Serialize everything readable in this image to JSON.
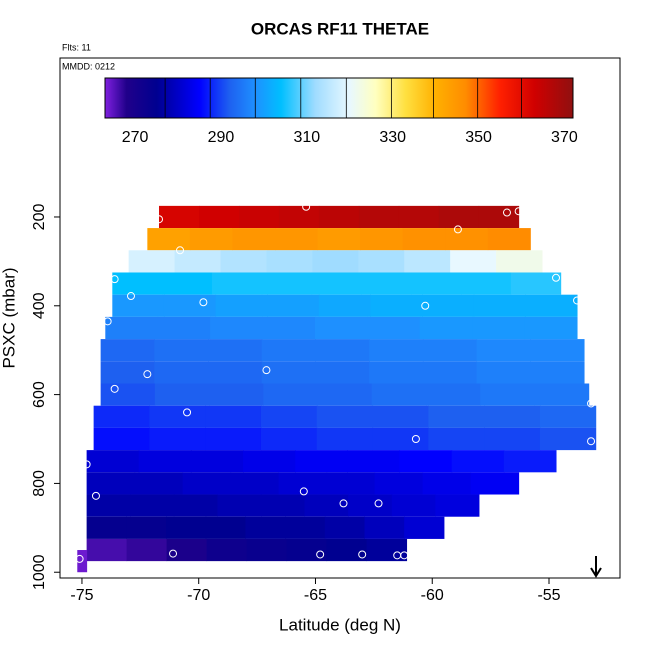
{
  "chart_data": {
    "type": "heatmap",
    "title": "ORCAS RF11 THETAE",
    "flights_label": "Flts: 11",
    "date_label": "MMDD: 0212",
    "xlabel": "Latitude (deg N)",
    "ylabel": "PSXC (mbar)",
    "xlim": [
      -75.94,
      -51.96
    ],
    "ylim": [
      1013,
      -158
    ],
    "xticks": [
      -75,
      -70,
      -65,
      -60,
      -55
    ],
    "yticks": [
      200,
      400,
      600,
      800,
      1000
    ],
    "colorbar_lim": [
      263,
      372
    ],
    "colorbar_ticks": [
      270,
      290,
      310,
      330,
      350,
      370
    ],
    "colorbar_breaks": [
      277,
      287.5,
      298,
      308.6,
      319.2,
      329.7,
      339.5,
      349.8,
      360
    ],
    "colorscale": [
      [
        263,
        "#8020e0"
      ],
      [
        268,
        "#20008a"
      ],
      [
        275,
        "#000090"
      ],
      [
        285,
        "#0000ff"
      ],
      [
        292,
        "#1e60f0"
      ],
      [
        298,
        "#1e90ff"
      ],
      [
        304,
        "#00bfff"
      ],
      [
        312,
        "#a0dcff"
      ],
      [
        320,
        "#e8f8ff"
      ],
      [
        326,
        "#ffffc0"
      ],
      [
        333,
        "#ffe040"
      ],
      [
        340,
        "#ffb000"
      ],
      [
        347,
        "#ff8c00"
      ],
      [
        355,
        "#ff2000"
      ],
      [
        363,
        "#d00000"
      ],
      [
        372,
        "#901010"
      ]
    ],
    "rows": [
      {
        "p": [
          175,
          225
        ],
        "lat": [
          -71.7,
          -56.3
        ],
        "values": [
          362,
          363,
          364,
          365,
          366,
          367,
          367,
          368,
          368
        ]
      },
      {
        "p": [
          225,
          275
        ],
        "lat": [
          -72.2,
          -55.8
        ],
        "values": [
          343,
          344,
          345,
          345,
          344,
          345,
          346,
          346,
          347
        ]
      },
      {
        "p": [
          275,
          325
        ],
        "lat": [
          -73.0,
          -55.3
        ],
        "values": [
          318,
          316,
          314,
          313,
          312,
          313,
          315,
          320,
          322
        ]
      },
      {
        "p": [
          325,
          375
        ],
        "lat": [
          -73.7,
          -54.5
        ],
        "values": [
          304,
          304,
          305,
          305,
          305,
          305,
          305,
          305,
          306
        ]
      },
      {
        "p": [
          375,
          425
        ],
        "lat": [
          -73.7,
          -53.8
        ],
        "values": [
          299,
          299,
          300,
          300,
          301,
          302,
          302,
          302,
          302
        ]
      },
      {
        "p": [
          425,
          475
        ],
        "lat": [
          -74.0,
          -53.8
        ],
        "values": [
          296,
          296,
          297,
          297,
          298,
          298,
          299,
          299,
          299
        ]
      },
      {
        "p": [
          475,
          525
        ],
        "lat": [
          -74.2,
          -53.5
        ],
        "values": [
          293,
          294,
          294,
          295,
          295,
          296,
          296,
          297,
          297
        ]
      },
      {
        "p": [
          525,
          575
        ],
        "lat": [
          -74.2,
          -53.5
        ],
        "values": [
          292,
          293,
          293,
          294,
          294,
          295,
          295,
          296,
          296
        ]
      },
      {
        "p": [
          575,
          625
        ],
        "lat": [
          -74.2,
          -53.3
        ],
        "values": [
          291,
          292,
          292,
          293,
          293,
          294,
          294,
          295,
          295
        ]
      },
      {
        "p": [
          625,
          675
        ],
        "lat": [
          -74.5,
          -53.0
        ],
        "values": [
          288,
          289,
          289,
          290,
          291,
          291,
          292,
          292,
          293
        ]
      },
      {
        "p": [
          675,
          725
        ],
        "lat": [
          -74.5,
          -53.0
        ],
        "values": [
          286,
          287,
          287,
          288,
          289,
          289,
          290,
          290,
          291
        ]
      },
      {
        "p": [
          725,
          775
        ],
        "lat": [
          -74.8,
          -54.7
        ],
        "values": [
          281,
          282,
          282,
          283,
          284,
          284,
          285,
          286,
          287
        ]
      },
      {
        "p": [
          775,
          825
        ],
        "lat": [
          -74.8,
          -56.3
        ],
        "values": [
          279,
          279,
          280,
          280,
          281,
          281,
          282,
          283,
          284
        ]
      },
      {
        "p": [
          825,
          875
        ],
        "lat": [
          -74.8,
          -58.0
        ],
        "values": [
          277,
          277,
          277,
          278,
          278,
          279,
          280,
          281,
          282
        ]
      },
      {
        "p": [
          875,
          925
        ],
        "lat": [
          -74.8,
          -59.5
        ],
        "values": [
          274,
          274,
          275,
          275,
          276,
          276,
          277,
          279,
          281
        ]
      },
      {
        "p": [
          925,
          975
        ],
        "lat": [
          -74.8,
          -61.1
        ],
        "values": [
          266,
          267,
          269,
          272,
          273,
          274,
          275,
          276
        ]
      },
      {
        "p": [
          950,
          1000
        ],
        "lat": [
          -75.2,
          -74.8
        ],
        "values": [
          264
        ]
      }
    ],
    "points": {
      "x": [
        -71.7,
        -65.4,
        -56.8,
        -56.3,
        -58.9,
        -70.8,
        -73.6,
        -54.7,
        -72.9,
        -69.8,
        -60.3,
        -53.8,
        -73.9,
        -72.2,
        -67.1,
        -73.6,
        -70.5,
        -53.2,
        -53.2,
        -60.7,
        -74.8,
        -74.4,
        -65.5,
        -63.8,
        -62.3,
        -71.1,
        -64.8,
        -63.0,
        -61.5,
        -61.2,
        -75.1
      ],
      "y": [
        205,
        177,
        190,
        187,
        228,
        275,
        340,
        337,
        378,
        392,
        400,
        388,
        435,
        554,
        545,
        587,
        640,
        620,
        705,
        700,
        757,
        828,
        818,
        845,
        845,
        958,
        960,
        960,
        962,
        962,
        970
      ]
    }
  }
}
